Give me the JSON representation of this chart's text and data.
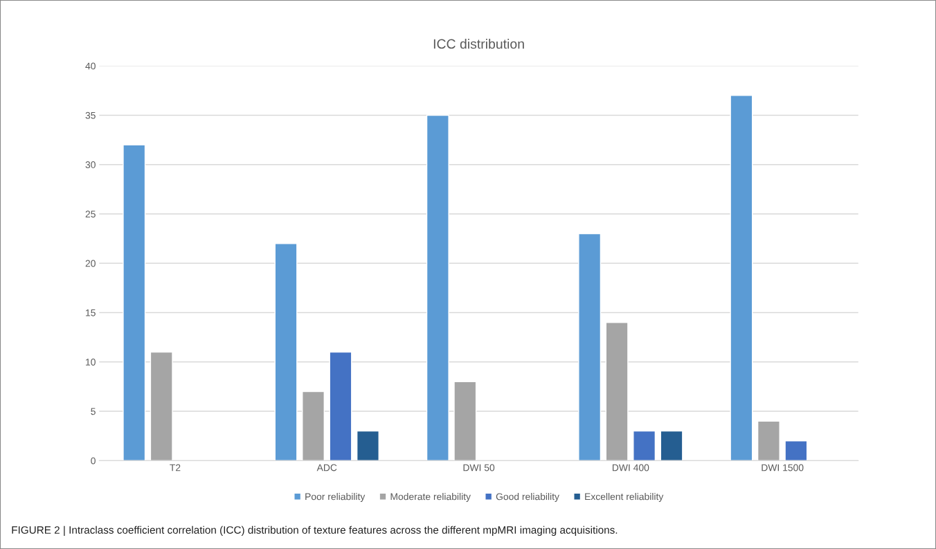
{
  "chart_data": {
    "type": "bar",
    "title": "ICC distribution",
    "categories": [
      "T2",
      "ADC",
      "DWI 50",
      "DWI 400",
      "DWI 1500"
    ],
    "series": [
      {
        "name": "Poor reliability",
        "color": "#5b9bd5",
        "values": [
          32,
          22,
          35,
          23,
          37
        ]
      },
      {
        "name": "Moderate reliability",
        "color": "#a5a5a5",
        "values": [
          11,
          7,
          8,
          14,
          4
        ]
      },
      {
        "name": "Good reliability",
        "color": "#4472c4",
        "values": [
          null,
          11,
          null,
          3,
          2
        ]
      },
      {
        "name": "Excellent reliability",
        "color": "#255e91",
        "values": [
          null,
          3,
          null,
          3,
          null
        ]
      }
    ],
    "ylim": [
      0,
      40
    ],
    "yticks": [
      0,
      5,
      10,
      15,
      20,
      25,
      30,
      35,
      40
    ],
    "grid": "y",
    "legend": "bottom",
    "annotations": [
      "FIGURE 2 | Intraclass coefficient correlation (ICC) distribution of texture features across the different mpMRI imaging acquisitions."
    ]
  }
}
